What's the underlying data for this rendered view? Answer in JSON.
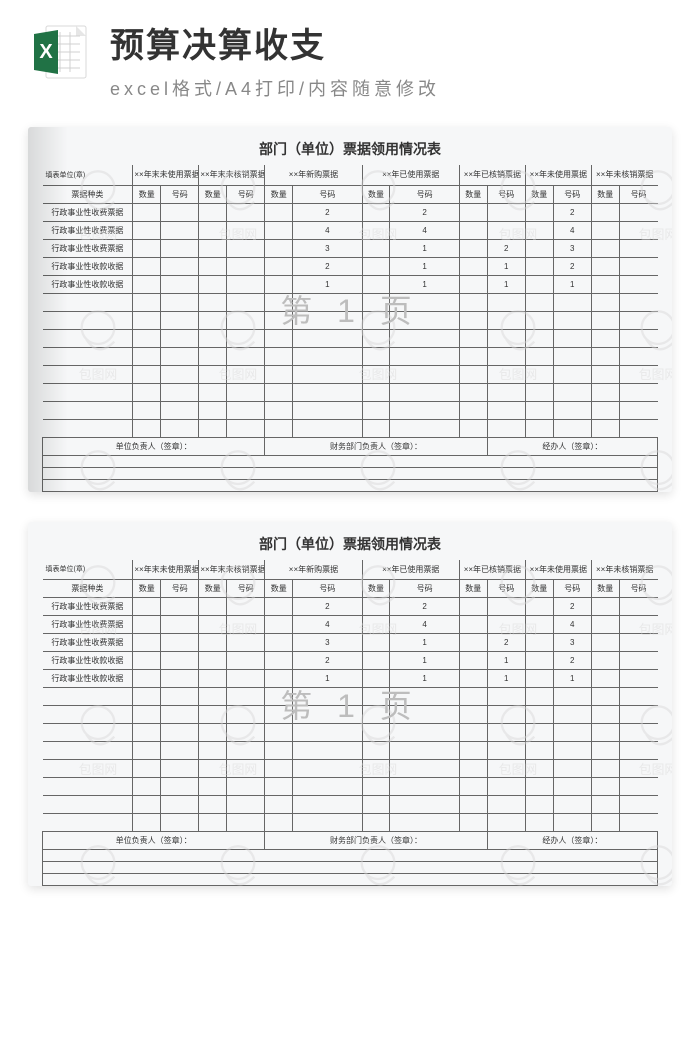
{
  "header": {
    "title": "预算决算收支",
    "subtitle": "excel格式/A4打印/内容随意修改"
  },
  "excel_icon": {
    "bg_color": "#207245",
    "page_color": "#ffffff",
    "letter": "X",
    "letter_color": "#ffffff"
  },
  "sheet": {
    "title": "部门（单位）票据领用情况表",
    "corner_label": "填表单位(章)",
    "row_header_label": "票据种类",
    "column_groups": [
      "××年末未使用票据",
      "××年末未核销票据",
      "××年新购票据",
      "××年已使用票据",
      "××年已核销票据",
      "××年未使用票据",
      "××年未核销票据"
    ],
    "sub_cols": {
      "qty": "数量",
      "code": "号码"
    },
    "row_labels": [
      "行政事业性收费票据",
      "行政事业性收费票据",
      "行政事业性收费票据",
      "行政事业性收款收据",
      "行政事业性收款收据"
    ],
    "data_rows": [
      {
        "c3": "2",
        "c4": "2",
        "c6": "2"
      },
      {
        "c3": "4",
        "c4": "4",
        "c6": "4"
      },
      {
        "c3": "3",
        "c4": "1",
        "c5": "2",
        "c6": "3"
      },
      {
        "c3": "2",
        "c4": "1",
        "c5": "1",
        "c6": "2"
      },
      {
        "c3": "1",
        "c4": "1",
        "c5": "1",
        "c6": "1"
      }
    ],
    "blank_rows": 8,
    "footer": {
      "left": "单位负责人（签章）：",
      "center": "财务部门负责人（签章）：",
      "right": "经办人（签章）："
    },
    "extra_gridlines": 3,
    "page_watermark": "第 1 页"
  },
  "colors": {
    "page_bg": "#ffffff",
    "card_bg": "#f6f7f8",
    "border": "#666666",
    "light_border": "#b8b8b8",
    "watermark_text": "#bdbdbd",
    "title_color": "#333333",
    "subtitle_color": "#888888"
  }
}
